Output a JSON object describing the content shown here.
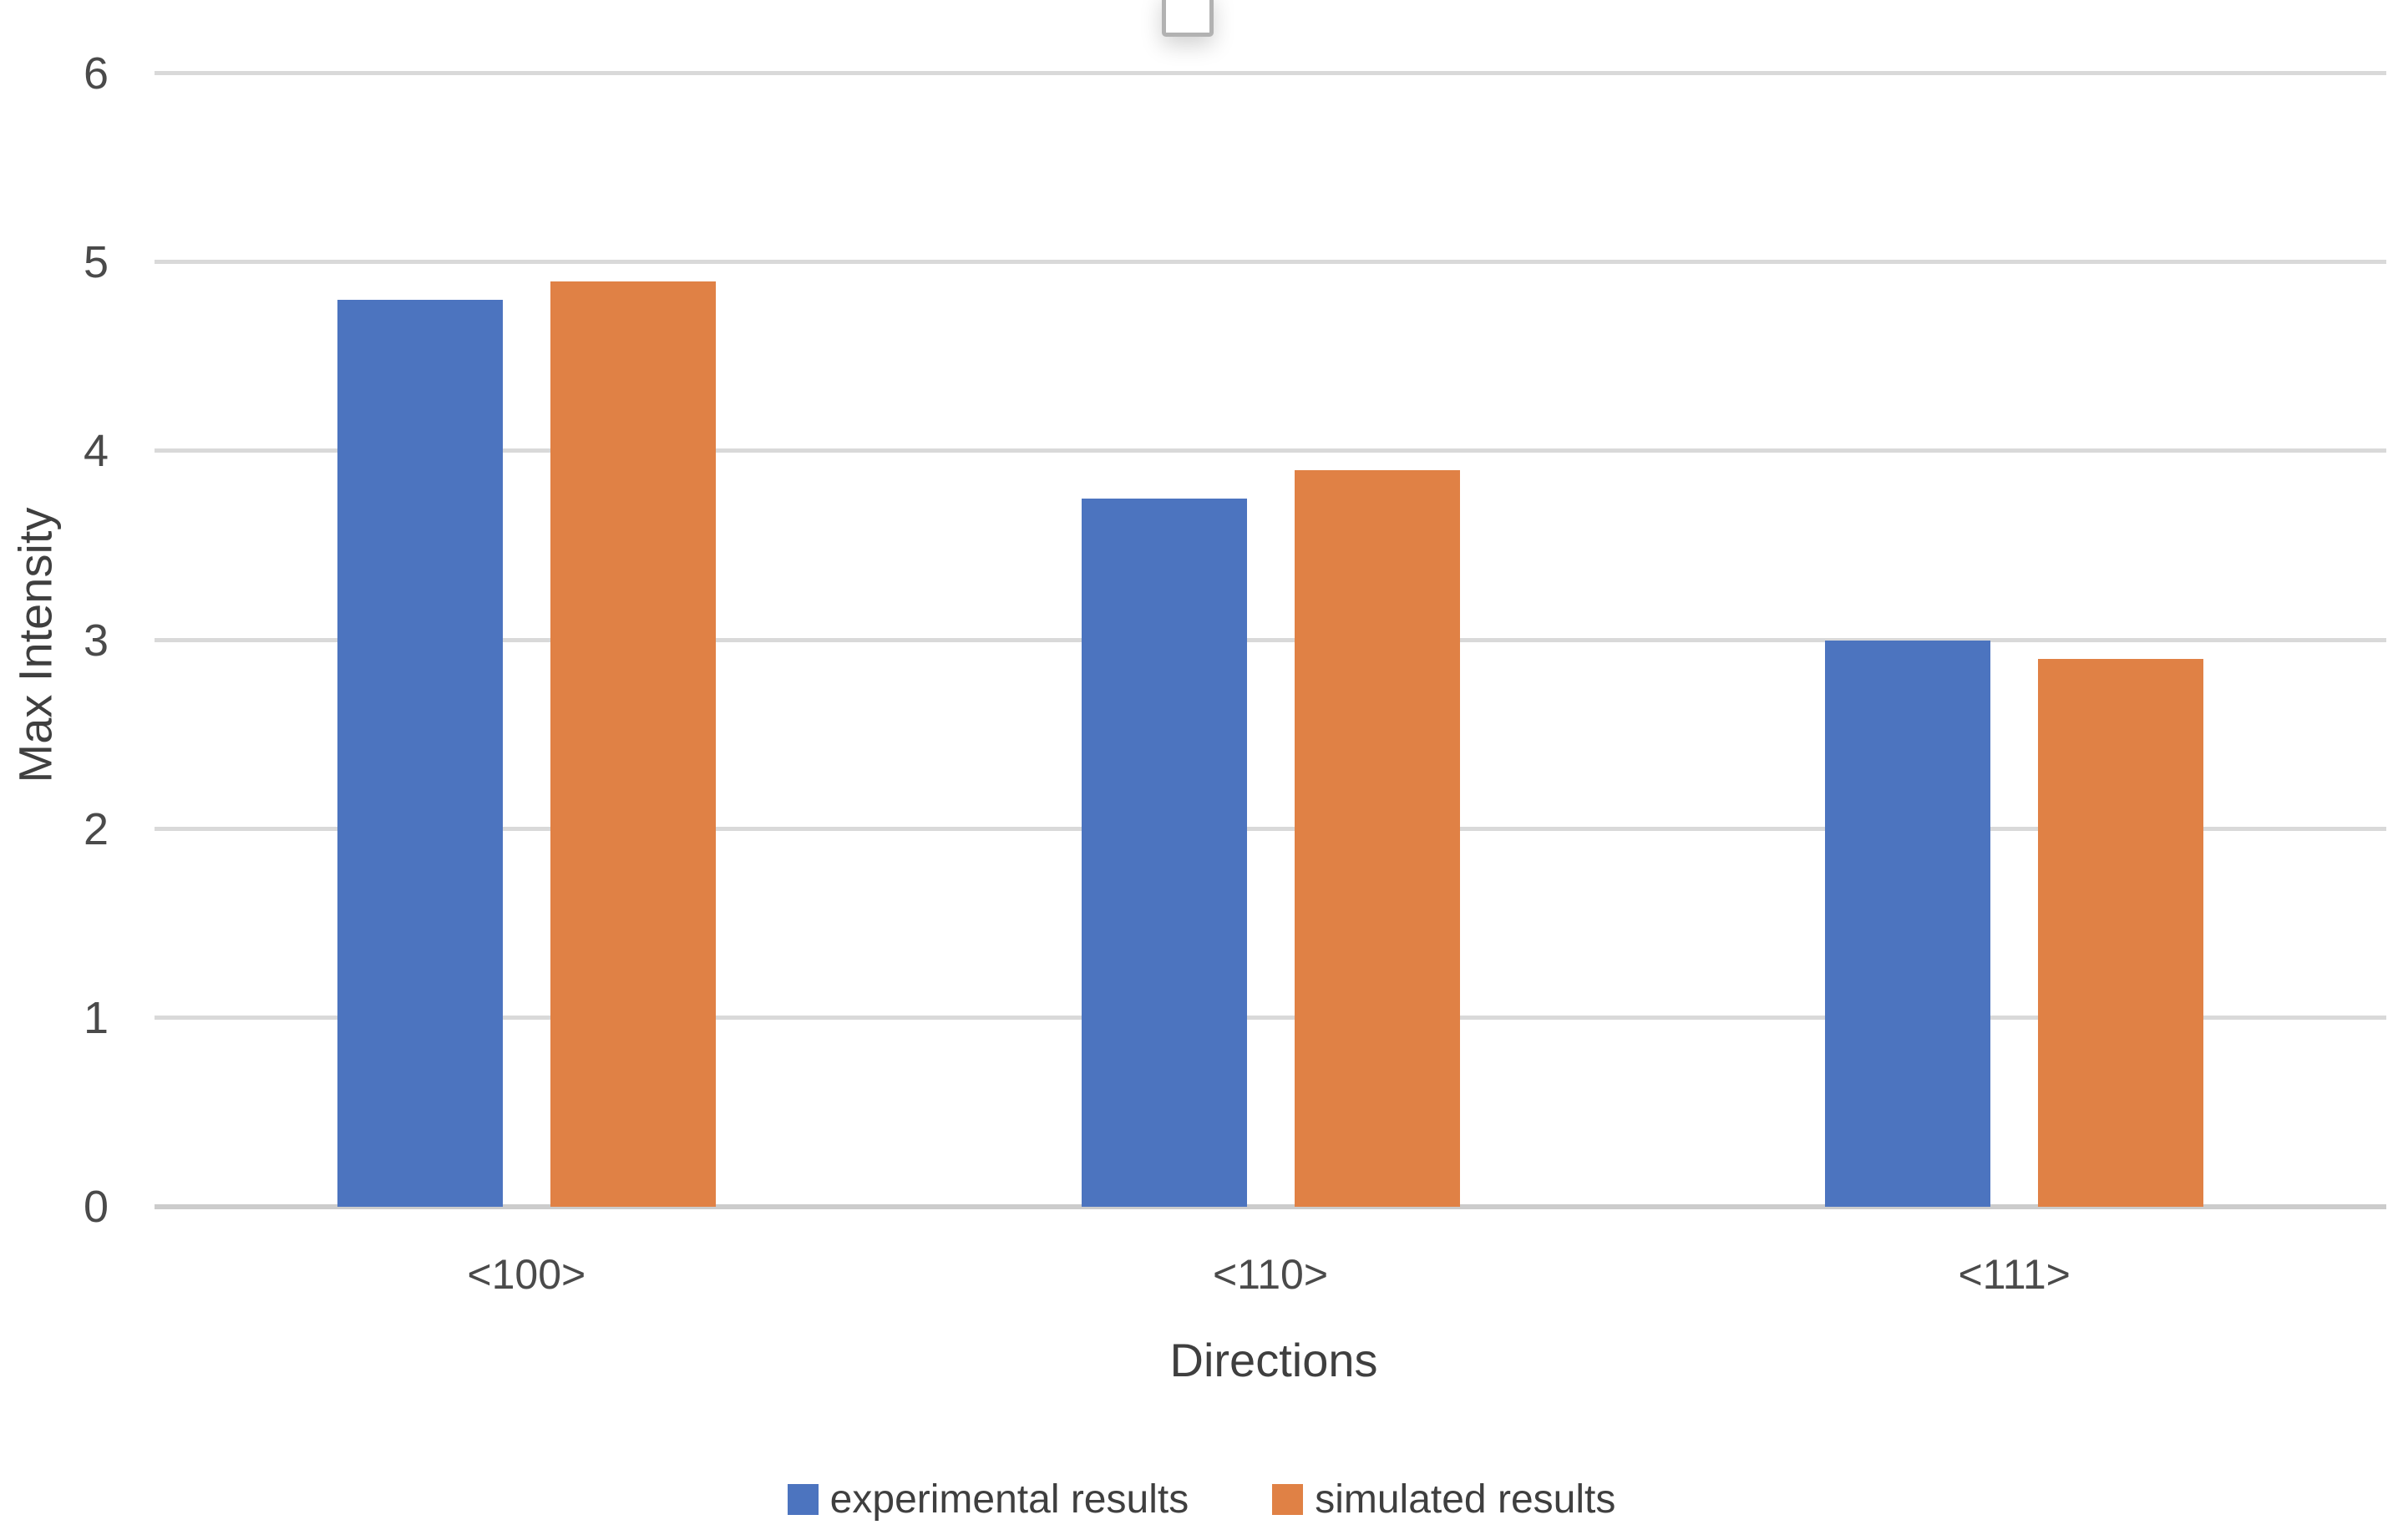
{
  "chart_data": {
    "type": "bar",
    "title": "",
    "categories": [
      "<100>",
      "<110>",
      "<111>"
    ],
    "series": [
      {
        "name": "experimental results",
        "color": "#4C74BF",
        "values": [
          4.8,
          3.75,
          3.0
        ]
      },
      {
        "name": "simulated results",
        "color": "#E08145",
        "values": [
          4.9,
          3.9,
          2.9
        ]
      }
    ],
    "xlabel": "Directions",
    "ylabel": "Max Intensity",
    "ylim": [
      0,
      6
    ],
    "ytick_step": 1,
    "grid": "horizontal",
    "legend_position": "bottom"
  },
  "colors": {
    "gridline": "#d9d9d9",
    "axis_line": "#cccccc",
    "tick_text": "#4a4a4a",
    "title_text": "#3f3f3f",
    "background": "#ffffff"
  },
  "artifacts": {
    "cropped_control_note": ""
  }
}
